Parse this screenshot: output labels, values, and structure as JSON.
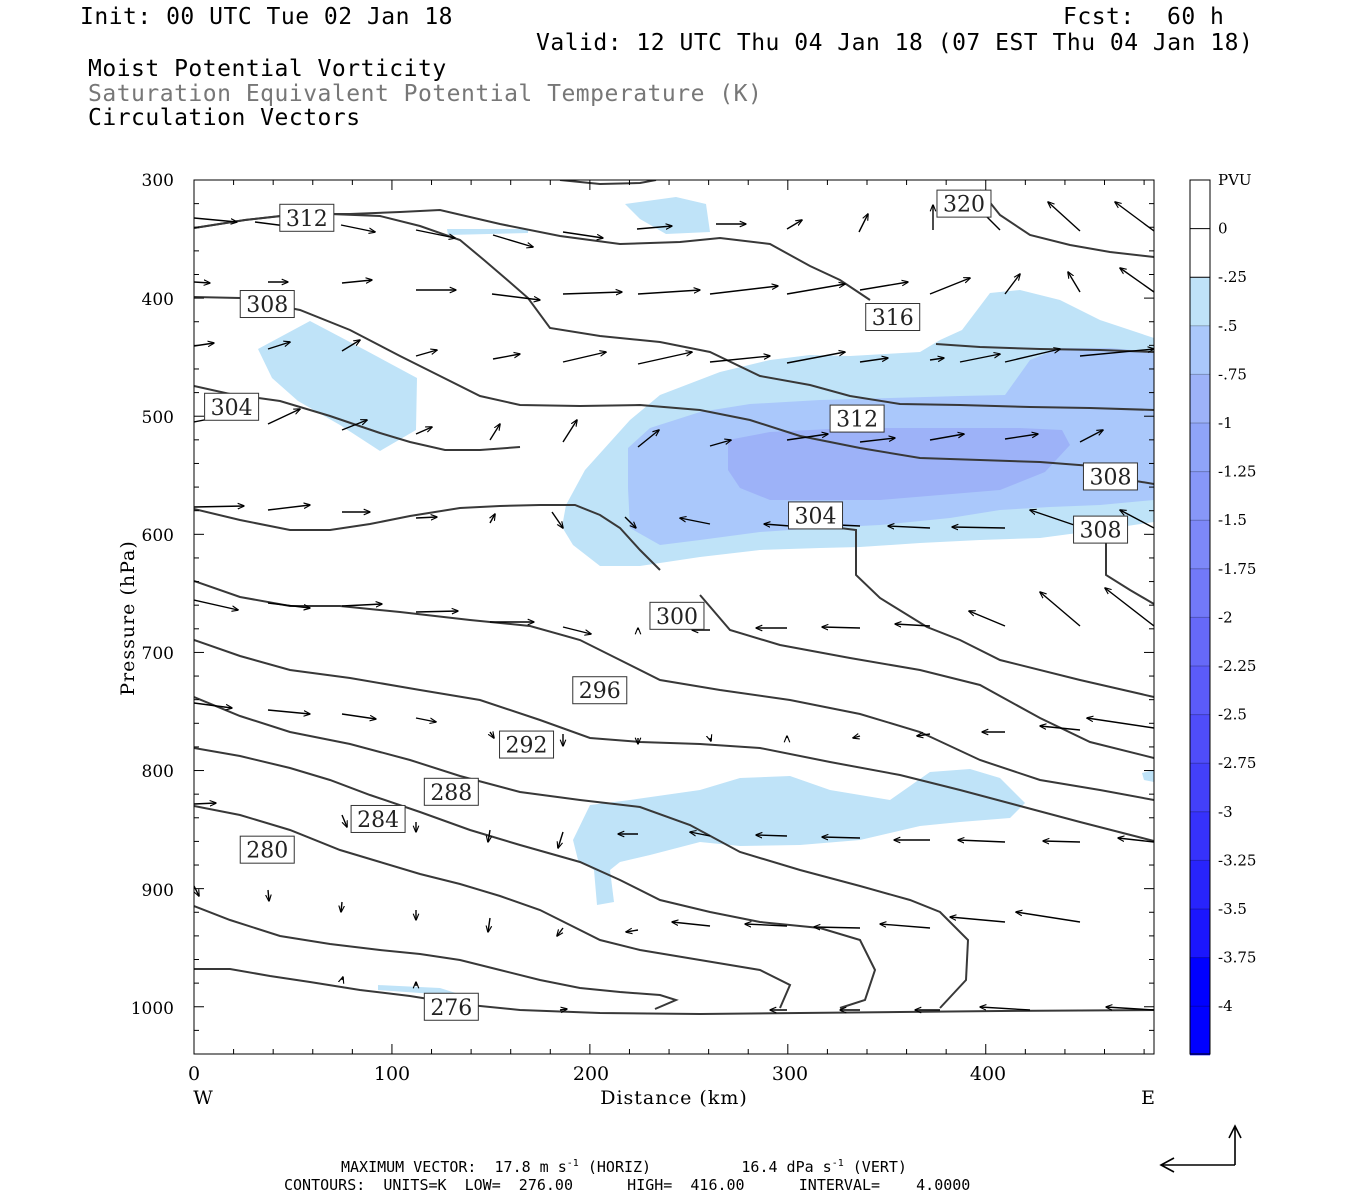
{
  "header": {
    "init": "Init: 00 UTC Tue 02 Jan 18",
    "fcst_label": "Fcst:",
    "fcst_value": "60 h",
    "valid": "Valid: 12 UTC Thu 04 Jan 18 (07 EST Thu 04 Jan 18)",
    "field1": "Moist Potential Vorticity",
    "field2": "Saturation Equivalent Potential Temperature (K)",
    "field3": "Circulation Vectors"
  },
  "colors": {
    "shade1": "#bfe3f8",
    "shade2": "#aac8fb",
    "shade3": "#9db2f8",
    "contour": "#383838",
    "grey_text": "#777777"
  },
  "chart_data": {
    "type": "contour",
    "xlabel": "Distance (km)",
    "ylabel": "Pressure (hPa)",
    "x_range": [
      0,
      485
    ],
    "y_range": [
      300,
      1040
    ],
    "x_ticks": [
      "0",
      "100",
      "200",
      "300",
      "400"
    ],
    "y_ticks": [
      "300",
      "400",
      "500",
      "600",
      "700",
      "800",
      "900",
      "1000"
    ],
    "x_end_labels": {
      "left": "W",
      "right": "E"
    },
    "contour_levels": [
      {
        "label": "312",
        "at": [
          57,
          332
        ]
      },
      {
        "label": "308",
        "at": [
          37,
          405
        ]
      },
      {
        "label": "304",
        "at": [
          19,
          492
        ]
      },
      {
        "label": "320",
        "at": [
          389,
          320
        ]
      },
      {
        "label": "316",
        "at": [
          353,
          416
        ]
      },
      {
        "label": "312",
        "at": [
          335,
          502
        ]
      },
      {
        "label": "308",
        "at": [
          463,
          551
        ]
      },
      {
        "label": "304",
        "at": [
          314,
          584
        ]
      },
      {
        "label": "308",
        "at": [
          458,
          596
        ]
      },
      {
        "label": "300",
        "at": [
          244,
          669
        ]
      },
      {
        "label": "296",
        "at": [
          205,
          732
        ]
      },
      {
        "label": "292",
        "at": [
          168,
          778
        ]
      },
      {
        "label": "288",
        "at": [
          130,
          818
        ]
      },
      {
        "label": "284",
        "at": [
          93,
          841
        ]
      },
      {
        "label": "280",
        "at": [
          37,
          867
        ]
      },
      {
        "label": "276",
        "at": [
          130,
          1000
        ]
      }
    ],
    "colorbar": {
      "title": "PVU",
      "ticks": [
        "0",
        "-.25",
        "-.5",
        "-.75",
        "-1",
        "-1.25",
        "-1.5",
        "-1.75",
        "-2",
        "-2.25",
        "-2.5",
        "-2.75",
        "-3",
        "-3.25",
        "-3.5",
        "-3.75",
        "-4"
      ]
    }
  },
  "footer": {
    "max_vector_prefix": "MAXIMUM VECTOR:",
    "max_vector_horiz": "17.8 m s",
    "max_vector_horiz_unit": "(HORIZ)",
    "max_vector_vert": "16.4 dPa s",
    "max_vector_vert_unit": "(VERT)",
    "exp": "-1",
    "contours_line": "CONTOURS:  UNITS=K  LOW=  276.00      HIGH=  416.00      INTERVAL=    4.0000"
  }
}
